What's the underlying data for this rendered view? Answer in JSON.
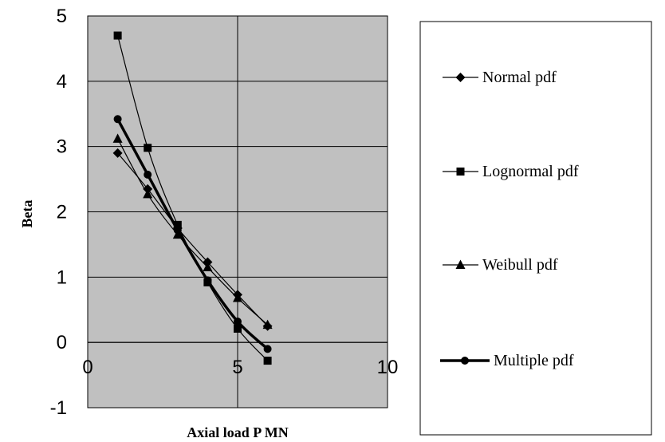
{
  "chart_data": {
    "type": "line",
    "xlabel": "Axial load P MN",
    "ylabel": "Beta",
    "xlim": [
      0,
      10
    ],
    "ylim": [
      -1,
      5
    ],
    "xticks": [
      0,
      5,
      10
    ],
    "yticks": [
      -1,
      0,
      1,
      2,
      3,
      4,
      5
    ],
    "grid": true,
    "legend_position": "right",
    "plot_background": "#c0c0c0",
    "series": [
      {
        "name": "Normal pdf",
        "marker": "diamond",
        "line_weight": "thin",
        "x": [
          1,
          2,
          3,
          4,
          5,
          6
        ],
        "y": [
          2.9,
          2.35,
          1.75,
          1.23,
          0.73,
          0.25
        ]
      },
      {
        "name": "Lognormal pdf",
        "marker": "square",
        "line_weight": "thin",
        "x": [
          1,
          2,
          3,
          4,
          5,
          6
        ],
        "y": [
          4.7,
          2.98,
          1.8,
          0.92,
          0.21,
          -0.28
        ]
      },
      {
        "name": "Weibull pdf",
        "marker": "triangle",
        "line_weight": "thin",
        "x": [
          1,
          2,
          3,
          4,
          5,
          6
        ],
        "y": [
          3.12,
          2.27,
          1.65,
          1.15,
          0.68,
          0.27
        ]
      },
      {
        "name": "Multiple pdf",
        "marker": "circle",
        "line_weight": "thick",
        "x": [
          1,
          2,
          3,
          4,
          5,
          6
        ],
        "y": [
          3.42,
          2.57,
          1.72,
          0.95,
          0.32,
          -0.1
        ]
      }
    ]
  }
}
